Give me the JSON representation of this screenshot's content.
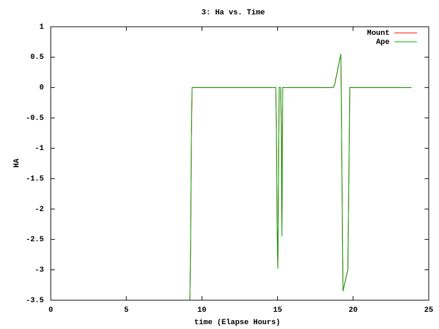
{
  "chart_data": {
    "type": "line",
    "title": "3: Ha vs. Time",
    "x_label": "time (Elapse Hours)",
    "y_label": "HA",
    "x": [
      9.2,
      9.25,
      9.3,
      9.35,
      14.88,
      14.93,
      14.97,
      15.02,
      15.11,
      15.2,
      15.25,
      15.29,
      15.34,
      18.69,
      18.78,
      19.19,
      19.33,
      19.65,
      19.72,
      19.78,
      23.87
    ],
    "series": [
      {
        "name": "Mount",
        "color": "#ff0000",
        "values": [
          -3.5,
          -2.62,
          -0.87,
          0,
          0,
          -0.76,
          -2.23,
          -2.98,
          0,
          0,
          -0.59,
          -2.45,
          0,
          0,
          0.05,
          0.55,
          -3.35,
          -3.0,
          -1.5,
          0,
          0
        ]
      },
      {
        "name": "Ape",
        "color": "#00a000",
        "values": [
          -3.5,
          -2.62,
          -0.87,
          0,
          0,
          -0.76,
          -2.23,
          -2.98,
          0,
          0,
          -0.59,
          -2.45,
          0,
          0,
          0.05,
          0.55,
          -3.35,
          -3.0,
          -1.5,
          0,
          0
        ]
      }
    ],
    "xlim": [
      0,
      25
    ],
    "xticks": [
      0,
      5,
      10,
      15,
      20,
      25
    ],
    "ylim": [
      -3.5,
      1
    ],
    "yticks": [
      1,
      0.5,
      0,
      -0.5,
      -1,
      -1.5,
      -2,
      -2.5,
      -3,
      -3.5
    ],
    "legend": "top-right",
    "grid": false
  }
}
